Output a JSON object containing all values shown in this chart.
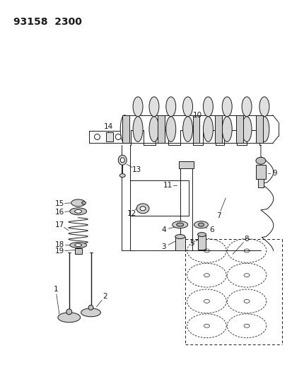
{
  "title": "93158  2300",
  "bg_color": "#ffffff",
  "line_color": "#1a1a1a",
  "fig_width": 4.14,
  "fig_height": 5.33,
  "dpi": 100
}
